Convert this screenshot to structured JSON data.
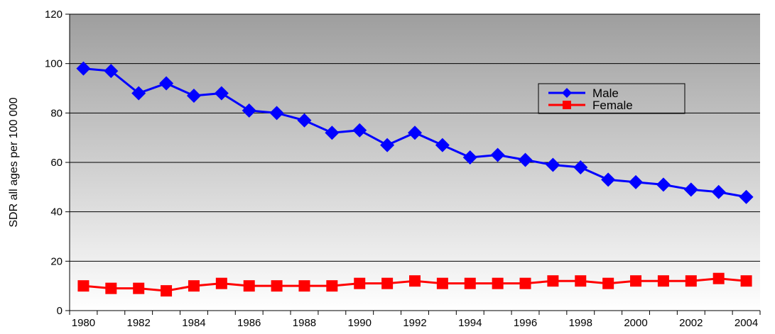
{
  "chart_data": {
    "type": "line",
    "title": "",
    "xlabel": "",
    "ylabel": "SDR all ages per 100 000",
    "ylim": [
      0,
      120
    ],
    "yticks": [
      0,
      20,
      40,
      60,
      80,
      100,
      120
    ],
    "x": [
      1980,
      1981,
      1982,
      1983,
      1984,
      1985,
      1986,
      1987,
      1988,
      1989,
      1990,
      1991,
      1992,
      1993,
      1994,
      1995,
      1996,
      1997,
      1998,
      1999,
      2000,
      2001,
      2002,
      2003,
      2004
    ],
    "xtick_labels": [
      "1980",
      "1982",
      "1984",
      "1986",
      "1988",
      "1990",
      "1992",
      "1994",
      "1996",
      "1998",
      "2000",
      "2002",
      "2004"
    ],
    "grid": true,
    "legend_position": "top-right",
    "series": [
      {
        "name": "Male",
        "color": "#0000FF",
        "marker": "diamond",
        "values": [
          98,
          97,
          88,
          92,
          87,
          88,
          81,
          80,
          77,
          72,
          73,
          67,
          72,
          67,
          62,
          63,
          61,
          59,
          58,
          53,
          52,
          51,
          49,
          48,
          46
        ]
      },
      {
        "name": "Female",
        "color": "#FF0000",
        "marker": "square",
        "values": [
          10,
          9,
          9,
          8,
          10,
          11,
          10,
          10,
          10,
          10,
          11,
          11,
          12,
          11,
          11,
          11,
          11,
          12,
          12,
          11,
          12,
          12,
          12,
          13,
          12
        ]
      }
    ]
  }
}
